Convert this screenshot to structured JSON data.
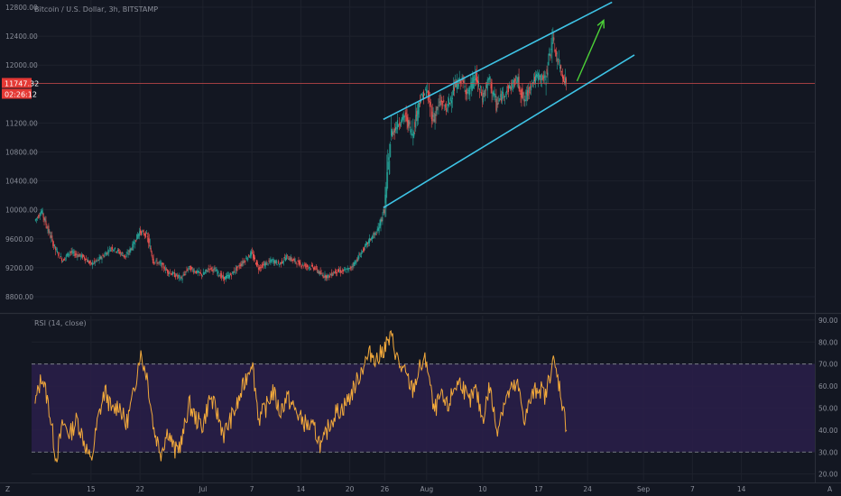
{
  "chart_data": [
    {
      "type": "line",
      "title": "Bitcoin / U.S. Dollar, 3h, BITSTAMP",
      "ylim": [
        8600,
        12900
      ],
      "y_ticks": [
        {
          "value": 12800,
          "label": "12800.00"
        },
        {
          "value": 12400,
          "label": "12400.00"
        },
        {
          "value": 12000,
          "label": "12000.00"
        },
        {
          "value": 11200,
          "label": "11200.00"
        },
        {
          "value": 10800,
          "label": "10800.00"
        },
        {
          "value": 10400,
          "label": "10400.00"
        },
        {
          "value": 10000,
          "label": "10000.00"
        },
        {
          "value": 9600,
          "label": "9600.00"
        },
        {
          "value": 9200,
          "label": "9200.00"
        },
        {
          "value": 8800,
          "label": "8800.00"
        }
      ],
      "last_price": {
        "value": 11747.32,
        "label": "11747.32",
        "countdown": "02:26:12"
      },
      "x_ticks": [
        {
          "day": 15,
          "label": "15"
        },
        {
          "day": 22,
          "label": "22"
        },
        {
          "day": 31,
          "label": "Jul"
        },
        {
          "day": 38,
          "label": "7"
        },
        {
          "day": 45,
          "label": "14"
        },
        {
          "day": 52,
          "label": "20"
        },
        {
          "day": 57,
          "label": "26"
        },
        {
          "day": 63,
          "label": "Aug"
        },
        {
          "day": 71,
          "label": "10"
        },
        {
          "day": 79,
          "label": "17"
        },
        {
          "day": 86,
          "label": "24"
        },
        {
          "day": 94,
          "label": "Sep"
        },
        {
          "day": 101,
          "label": "7"
        },
        {
          "day": 108,
          "label": "14"
        }
      ],
      "xlim": [
        6.5,
        118.5
      ],
      "price_series": [
        [
          7,
          9850
        ],
        [
          8,
          9980
        ],
        [
          9,
          9700
        ],
        [
          10,
          9450
        ],
        [
          11,
          9300
        ],
        [
          12,
          9420
        ],
        [
          13,
          9380
        ],
        [
          14,
          9350
        ],
        [
          15,
          9250
        ],
        [
          16,
          9300
        ],
        [
          17,
          9380
        ],
        [
          18,
          9480
        ],
        [
          19,
          9420
        ],
        [
          20,
          9350
        ],
        [
          21,
          9500
        ],
        [
          22,
          9700
        ],
        [
          23,
          9650
        ],
        [
          24,
          9300
        ],
        [
          25,
          9250
        ],
        [
          26,
          9150
        ],
        [
          27,
          9100
        ],
        [
          28,
          9050
        ],
        [
          29,
          9200
        ],
        [
          30,
          9150
        ],
        [
          31,
          9100
        ],
        [
          32,
          9200
        ],
        [
          33,
          9150
        ],
        [
          34,
          9050
        ],
        [
          35,
          9100
        ],
        [
          36,
          9200
        ],
        [
          37,
          9300
        ],
        [
          38,
          9400
        ],
        [
          39,
          9200
        ],
        [
          40,
          9250
        ],
        [
          41,
          9300
        ],
        [
          42,
          9250
        ],
        [
          43,
          9350
        ],
        [
          44,
          9300
        ],
        [
          45,
          9250
        ],
        [
          46,
          9220
        ],
        [
          47,
          9200
        ],
        [
          48,
          9100
        ],
        [
          49,
          9080
        ],
        [
          50,
          9150
        ],
        [
          51,
          9150
        ],
        [
          52,
          9180
        ],
        [
          53,
          9300
        ],
        [
          54,
          9450
        ],
        [
          55,
          9600
        ],
        [
          56,
          9700
        ],
        [
          57,
          10000
        ],
        [
          58,
          11050
        ],
        [
          59,
          11200
        ],
        [
          60,
          11300
        ],
        [
          61,
          11050
        ],
        [
          62,
          11500
        ],
        [
          63,
          11650
        ],
        [
          64,
          11250
        ],
        [
          65,
          11500
        ],
        [
          66,
          11400
        ],
        [
          67,
          11700
        ],
        [
          68,
          11800
        ],
        [
          69,
          11600
        ],
        [
          70,
          11850
        ],
        [
          71,
          11550
        ],
        [
          72,
          11800
        ],
        [
          73,
          11450
        ],
        [
          74,
          11600
        ],
        [
          75,
          11700
        ],
        [
          76,
          11800
        ],
        [
          77,
          11500
        ],
        [
          78,
          11750
        ],
        [
          79,
          11850
        ],
        [
          80,
          11800
        ],
        [
          81,
          12350
        ],
        [
          82,
          12000
        ],
        [
          83,
          11747
        ]
      ],
      "channel": {
        "upper": [
          [
            56.8,
            11250
          ],
          [
            89.5,
            12870
          ]
        ],
        "lower": [
          [
            56.8,
            10030
          ],
          [
            92.7,
            12140
          ]
        ]
      },
      "arrow": {
        "from": [
          84.5,
          11780
        ],
        "to": [
          88.3,
          12620
        ]
      }
    },
    {
      "type": "line",
      "title": "RSI (14, close)",
      "ylim": [
        17,
        92
      ],
      "y_ticks": [
        {
          "value": 90,
          "label": "90.00"
        },
        {
          "value": 80,
          "label": "80.00"
        },
        {
          "value": 70,
          "label": "70.00"
        },
        {
          "value": 60,
          "label": "60.00"
        },
        {
          "value": 50,
          "label": "50.00"
        },
        {
          "value": 40,
          "label": "40.00"
        },
        {
          "value": 30,
          "label": "30.00"
        },
        {
          "value": 20,
          "label": "20.00"
        }
      ],
      "band": [
        30,
        70
      ],
      "rsi_series": [
        [
          7,
          52
        ],
        [
          8,
          65
        ],
        [
          9,
          50
        ],
        [
          10,
          27
        ],
        [
          11,
          43
        ],
        [
          12,
          38
        ],
        [
          13,
          45
        ],
        [
          14,
          35
        ],
        [
          15,
          25
        ],
        [
          16,
          45
        ],
        [
          17,
          58
        ],
        [
          18,
          48
        ],
        [
          19,
          52
        ],
        [
          20,
          42
        ],
        [
          21,
          55
        ],
        [
          22,
          75
        ],
        [
          23,
          65
        ],
        [
          24,
          40
        ],
        [
          25,
          30
        ],
        [
          26,
          40
        ],
        [
          27,
          30
        ],
        [
          28,
          35
        ],
        [
          29,
          52
        ],
        [
          30,
          45
        ],
        [
          31,
          42
        ],
        [
          32,
          55
        ],
        [
          33,
          48
        ],
        [
          34,
          38
        ],
        [
          35,
          45
        ],
        [
          36,
          52
        ],
        [
          37,
          62
        ],
        [
          38,
          72
        ],
        [
          39,
          45
        ],
        [
          40,
          50
        ],
        [
          41,
          58
        ],
        [
          42,
          48
        ],
        [
          43,
          55
        ],
        [
          44,
          50
        ],
        [
          45,
          45
        ],
        [
          46,
          42
        ],
        [
          47,
          40
        ],
        [
          48,
          32
        ],
        [
          49,
          42
        ],
        [
          50,
          48
        ],
        [
          51,
          50
        ],
        [
          52,
          55
        ],
        [
          53,
          62
        ],
        [
          54,
          70
        ],
        [
          55,
          75
        ],
        [
          56,
          72
        ],
        [
          57,
          78
        ],
        [
          58,
          82
        ],
        [
          59,
          70
        ],
        [
          60,
          65
        ],
        [
          61,
          58
        ],
        [
          62,
          68
        ],
        [
          63,
          72
        ],
        [
          64,
          48
        ],
        [
          65,
          55
        ],
        [
          66,
          50
        ],
        [
          67,
          60
        ],
        [
          68,
          62
        ],
        [
          69,
          52
        ],
        [
          70,
          58
        ],
        [
          71,
          45
        ],
        [
          72,
          60
        ],
        [
          73,
          40
        ],
        [
          74,
          52
        ],
        [
          75,
          58
        ],
        [
          76,
          60
        ],
        [
          77,
          45
        ],
        [
          78,
          55
        ],
        [
          79,
          60
        ],
        [
          80,
          55
        ],
        [
          81,
          72
        ],
        [
          82,
          60
        ],
        [
          83,
          40
        ]
      ]
    }
  ],
  "colors": {
    "background": "#131722",
    "grid": "#1e222d",
    "candle_up": "#26a69a",
    "candle_down": "#ef5350",
    "channel_line": "#3ec4e6",
    "arrow": "#4cd137",
    "price_line": "#d14d4d",
    "badge": "#e53935",
    "rsi_line": "#f2a93b",
    "rsi_band": "#2a1f4a",
    "rsi_band_line": "#8a8e99"
  },
  "icons": {
    "settings_left": "Z",
    "settings_right": "A"
  }
}
